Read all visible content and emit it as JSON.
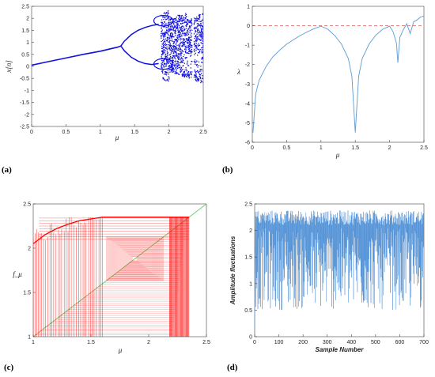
{
  "colors": {
    "bifurcation": "#1010e0",
    "lyapunov": "#5b9bd5",
    "zero_line": "#e07070",
    "cobweb": "#ff0000",
    "diagonal": "#66cc66",
    "amplitude": "#4d8fd6",
    "axis": "#444444"
  },
  "chart_data": [
    {
      "panel": "(a)",
      "type": "scatter",
      "title": "",
      "xlabel": "μ",
      "ylabel": "x[n]",
      "xlim": [
        0,
        2.5
      ],
      "ylim": [
        -2.5,
        2.5
      ],
      "xticks": [
        "0",
        "0.5",
        "1",
        "1.5",
        "2",
        "2.5"
      ],
      "yticks": [
        "2.5",
        "2",
        "1.5",
        "1",
        "0.5",
        "0",
        "-0.5",
        "-1",
        "-1.5",
        "-2",
        "-2.5"
      ],
      "x": [
        0,
        0.25,
        0.5,
        0.75,
        1.0,
        1.25,
        1.3,
        1.4,
        1.5,
        1.6,
        1.7,
        1.8,
        1.9,
        2.0,
        2.1,
        2.2,
        2.3,
        2.4,
        2.5
      ],
      "series": [
        {
          "values": [
            0.05,
            0.2,
            0.35,
            0.5,
            0.63,
            0.8,
            0.85,
            1.2,
            1.4,
            1.52,
            1.6,
            1.62,
            1.7,
            1.72,
            1.8,
            2.0,
            2.2,
            2.35,
            2.45
          ]
        },
        {
          "values": [
            0.05,
            0.2,
            0.35,
            0.5,
            0.63,
            0.8,
            0.85,
            0.5,
            0.3,
            0.2,
            0.1,
            0.05,
            -0.3,
            -0.6,
            -0.9,
            -1.2,
            -1.5,
            -1.75,
            -2.0
          ]
        }
      ]
    },
    {
      "panel": "(b)",
      "type": "line",
      "title": "",
      "xlabel": "μ",
      "ylabel": "λ",
      "xlim": [
        0,
        2.5
      ],
      "ylim": [
        -6,
        1
      ],
      "xticks": [
        "0",
        "0.5",
        "1",
        "1.5",
        "2",
        "2.5"
      ],
      "yticks": [
        "1",
        "0",
        "-1",
        "-2",
        "-3",
        "-4",
        "-5",
        "-6"
      ],
      "x": [
        0.01,
        0.05,
        0.1,
        0.2,
        0.3,
        0.4,
        0.5,
        0.6,
        0.7,
        0.8,
        0.9,
        1.0,
        1.1,
        1.2,
        1.3,
        1.4,
        1.45,
        1.5,
        1.55,
        1.6,
        1.7,
        1.8,
        1.9,
        2.0,
        2.05,
        2.1,
        2.12,
        2.15,
        2.2,
        2.25,
        2.3,
        2.35,
        2.4,
        2.45,
        2.5
      ],
      "series": [
        {
          "values": [
            -5.5,
            -3.5,
            -2.8,
            -2.1,
            -1.6,
            -1.25,
            -0.95,
            -0.72,
            -0.5,
            -0.32,
            -0.15,
            -0.02,
            -0.18,
            -0.5,
            -0.95,
            -1.7,
            -2.6,
            -5.5,
            -2.6,
            -1.7,
            -0.95,
            -0.48,
            -0.18,
            -0.02,
            -0.3,
            -0.9,
            -1.9,
            -0.6,
            -0.2,
            0.1,
            -0.4,
            0.2,
            0.3,
            0.45,
            0.5
          ]
        }
      ],
      "reference_line": 0
    },
    {
      "panel": "(c)",
      "type": "line",
      "title": "",
      "xlabel": "μ",
      "ylabel": "f_μ",
      "xlim": [
        1,
        2.5
      ],
      "ylim": [
        1,
        2.5
      ],
      "xticks": [
        "1",
        "1.5",
        "2",
        "2.5"
      ],
      "yticks": [
        "2.5",
        "2",
        "1.5",
        "1"
      ],
      "x": [
        1.0,
        1.1,
        1.2,
        1.3,
        1.4,
        1.5,
        1.6,
        1.7,
        1.8,
        1.9,
        2.0,
        2.1,
        2.2,
        2.3,
        2.35
      ],
      "series": [
        {
          "values": [
            2.05,
            2.15,
            2.22,
            2.27,
            2.31,
            2.33,
            2.35,
            2.35,
            2.35,
            2.35,
            2.35,
            2.35,
            2.35,
            2.35,
            2.35
          ]
        }
      ],
      "diagonal": true
    },
    {
      "panel": "(d)",
      "type": "line",
      "title": "",
      "xlabel": "Sample Number",
      "ylabel": "Amplitude fluctuations",
      "xlim": [
        0,
        700
      ],
      "ylim": [
        0,
        2.5
      ],
      "xticks": [
        "0",
        "100",
        "200",
        "300",
        "400",
        "500",
        "600",
        "700"
      ],
      "yticks": [
        "2.5",
        "2",
        "1.5",
        "1",
        "0.5",
        "0"
      ],
      "x": [
        0,
        50,
        100,
        150,
        200,
        250,
        300,
        350,
        400,
        450,
        500,
        550,
        600,
        650,
        700
      ],
      "series": [
        {
          "values": [
            0.1,
            2.3,
            0.6,
            2.1,
            1.2,
            2.35,
            0.5,
            2.2,
            1.0,
            2.3,
            0.7,
            2.25,
            0.9,
            2.3,
            0.8
          ]
        }
      ]
    }
  ]
}
